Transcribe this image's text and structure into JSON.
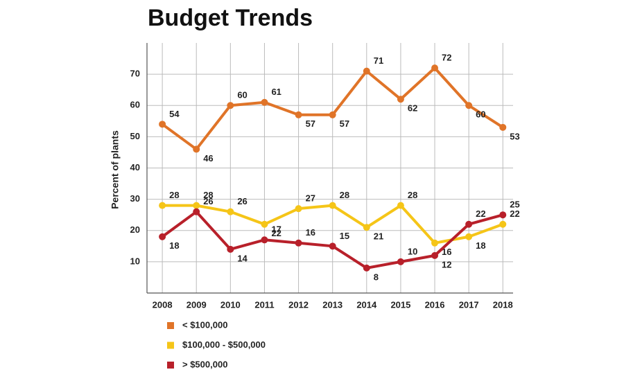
{
  "chart_data": {
    "type": "line",
    "title": "Budget Trends",
    "y_label": "Percent of plants",
    "x": [
      2008,
      2009,
      2010,
      2011,
      2012,
      2013,
      2014,
      2015,
      2016,
      2017,
      2018
    ],
    "xlim": [
      2007.55,
      2018.3
    ],
    "xticks": [
      2008,
      2009,
      2010,
      2011,
      2012,
      2013,
      2014,
      2015,
      2016,
      2017,
      2018
    ],
    "ylim": [
      0,
      80
    ],
    "yticks": [
      10,
      20,
      30,
      40,
      50,
      60,
      70
    ],
    "grid": true,
    "series": [
      {
        "name": "< $100,000",
        "color": "#e07428",
        "values": [
          54,
          46,
          60,
          61,
          57,
          57,
          71,
          62,
          72,
          60,
          53
        ]
      },
      {
        "name": "$100,000 - $500,000",
        "color": "#f5c518",
        "values": [
          28,
          28,
          26,
          22,
          27,
          28,
          21,
          28,
          16,
          18,
          22
        ]
      },
      {
        "name": "> $500,000",
        "color": "#b8202a",
        "values": [
          18,
          26,
          14,
          17,
          16,
          15,
          8,
          10,
          12,
          22,
          25
        ]
      }
    ]
  }
}
